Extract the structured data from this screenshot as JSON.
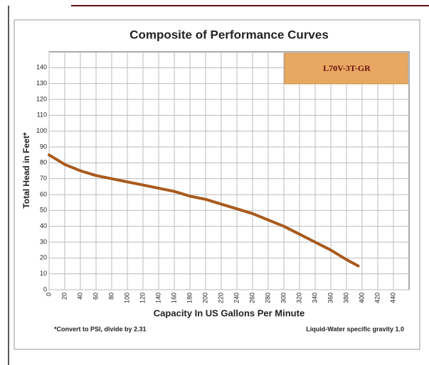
{
  "chart_data": {
    "type": "line",
    "title": "Composite of Performance Curves",
    "xlabel": "Capacity In US Gallons Per Minute",
    "ylabel": "Total Head in Feet*",
    "notes": [
      "*Convert to PSI, divide by 2.31",
      "Liquid-Water specific gravity 1.0"
    ],
    "x": [
      0,
      20,
      40,
      60,
      80,
      100,
      120,
      140,
      160,
      180,
      200,
      220,
      240,
      260,
      280,
      300,
      320,
      340,
      360,
      380,
      395
    ],
    "series": [
      {
        "name": "L70V-3T-GR",
        "color": "#a85a1c",
        "values": [
          85,
          79,
          75,
          72,
          70,
          68,
          66,
          64,
          62,
          59,
          57,
          54,
          51,
          48,
          44,
          40,
          35,
          30,
          25,
          19,
          15
        ]
      }
    ],
    "xlim": [
      0,
      460
    ],
    "xticks": [
      0,
      20,
      40,
      60,
      80,
      100,
      120,
      140,
      160,
      180,
      200,
      220,
      240,
      260,
      280,
      300,
      320,
      340,
      360,
      380,
      400,
      420,
      440
    ],
    "ylim": [
      0,
      150
    ],
    "yticks": [
      0,
      10,
      20,
      30,
      40,
      50,
      60,
      70,
      80,
      90,
      100,
      110,
      120,
      130,
      140
    ],
    "grid": true,
    "legend": "upper right",
    "legend_color": "#e8a862"
  }
}
